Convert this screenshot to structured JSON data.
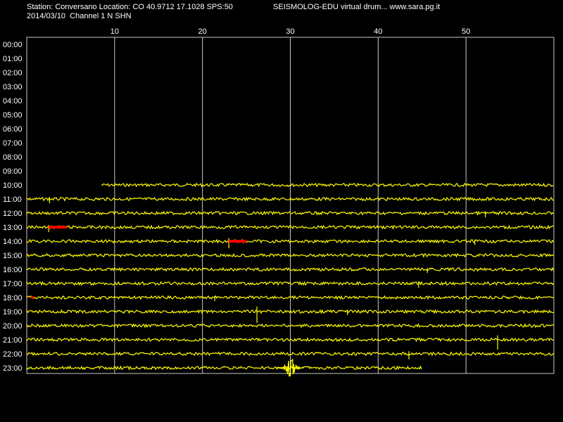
{
  "header": {
    "station_line": "Station: Conversano Location: CO 40.9712 17.1028 SPS:50",
    "date_line": "2014/03/10  Channel 1 N SHN",
    "app_line": "SEISMOLOG-EDU virtual drum... www.sara.pg.it"
  },
  "chart_data": {
    "type": "line",
    "title": "",
    "xlabel": "",
    "ylabel": "",
    "xlim": [
      0,
      60
    ],
    "x_ticks": [
      10,
      20,
      30,
      40,
      50
    ],
    "x_tick_labels": [
      "10",
      "20",
      "30",
      "40",
      "50"
    ],
    "rows": [
      "00:00",
      "01:00",
      "02:00",
      "03:00",
      "04:00",
      "05:00",
      "06:00",
      "07:00",
      "08:00",
      "09:00",
      "10:00",
      "11:00",
      "12:00",
      "13:00",
      "14:00",
      "15:00",
      "16:00",
      "17:00",
      "18:00",
      "19:00",
      "20:00",
      "21:00",
      "22:00",
      "23:00"
    ],
    "grid": true,
    "colors": {
      "background": "#000000",
      "trace": "#ffff00",
      "event": "#ff0000",
      "grid": "#c8c8c8",
      "text": "#ffffff"
    },
    "traces": [
      {
        "hour": "10:00",
        "start_min": 8.5,
        "end_min": 60
      },
      {
        "hour": "11:00",
        "start_min": 0,
        "end_min": 60
      },
      {
        "hour": "12:00",
        "start_min": 0,
        "end_min": 60
      },
      {
        "hour": "13:00",
        "start_min": 0,
        "end_min": 60
      },
      {
        "hour": "14:00",
        "start_min": 0,
        "end_min": 60
      },
      {
        "hour": "15:00",
        "start_min": 0,
        "end_min": 60
      },
      {
        "hour": "16:00",
        "start_min": 0,
        "end_min": 60
      },
      {
        "hour": "17:00",
        "start_min": 0,
        "end_min": 60
      },
      {
        "hour": "18:00",
        "start_min": 0,
        "end_min": 60
      },
      {
        "hour": "19:00",
        "start_min": 0,
        "end_min": 60
      },
      {
        "hour": "20:00",
        "start_min": 0,
        "end_min": 60
      },
      {
        "hour": "21:00",
        "start_min": 0,
        "end_min": 60
      },
      {
        "hour": "22:00",
        "start_min": 0,
        "end_min": 60
      },
      {
        "hour": "23:00",
        "start_min": 0,
        "end_min": 45
      }
    ],
    "spikes": [
      {
        "hour": "11:00",
        "min": 2.6,
        "amp": 6
      },
      {
        "hour": "12:00",
        "min": 52.2,
        "amp": 6
      },
      {
        "hour": "13:00",
        "min": 2.5,
        "amp": 7
      },
      {
        "hour": "14:00",
        "min": 23.0,
        "amp": 10
      },
      {
        "hour": "14:00",
        "min": 51.0,
        "amp": 5
      },
      {
        "hour": "16:00",
        "min": 45.6,
        "amp": 5
      },
      {
        "hour": "17:00",
        "min": 44.6,
        "amp": 6
      },
      {
        "hour": "18:00",
        "min": 21.4,
        "amp": 5
      },
      {
        "hour": "19:00",
        "min": 26.2,
        "amp": 16
      },
      {
        "hour": "19:00",
        "min": 36.5,
        "amp": 5
      },
      {
        "hour": "21:00",
        "min": 53.6,
        "amp": 14
      },
      {
        "hour": "22:00",
        "min": 43.5,
        "amp": 8
      }
    ],
    "events": [
      {
        "hour": "13:00",
        "start_min": 2.5,
        "end_min": 4.5
      },
      {
        "hour": "14:00",
        "start_min": 23.0,
        "end_min": 25.0
      },
      {
        "hour": "18:00",
        "start_min": 0.5,
        "end_min": 0.8
      }
    ],
    "quake": {
      "hour": "23:00",
      "center_min": 30.0,
      "halfwidth_min": 1.6,
      "amp": 15
    }
  }
}
